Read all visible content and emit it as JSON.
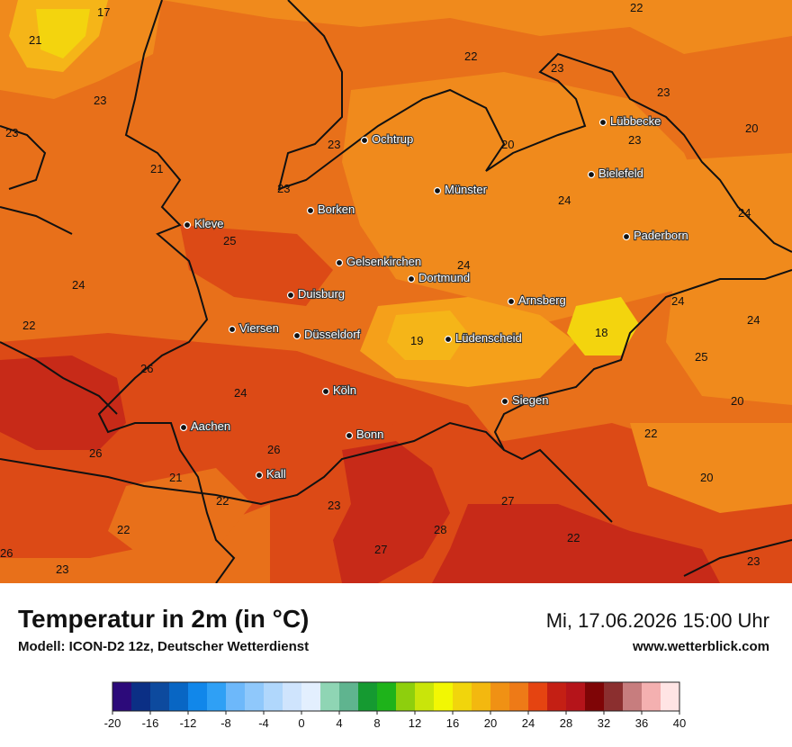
{
  "title": "Temperatur in 2m (in °C)",
  "model": "Modell: ICON-D2 12z, Deutscher Wetterdienst",
  "datetime": "Mi, 17.06.2026 15:00 Uhr",
  "site": "www.wetterblick.com",
  "colors": {
    "base_warm": "#e8701a",
    "light": "#f08a1c",
    "hot": "#dc4a16",
    "very_hot": "#c72a18",
    "cool": "#f5b518",
    "coolest": "#f3d40e",
    "border": "#111111"
  },
  "cities": [
    {
      "name": "Ochtrup"
    },
    {
      "name": "Lübbecke"
    },
    {
      "name": "Bielefeld"
    },
    {
      "name": "Münster"
    },
    {
      "name": "Borken"
    },
    {
      "name": "Kleve"
    },
    {
      "name": "Paderborn"
    },
    {
      "name": "Gelsenkirchen"
    },
    {
      "name": "Dortmund"
    },
    {
      "name": "Duisburg"
    },
    {
      "name": "Arnsberg"
    },
    {
      "name": "Viersen"
    },
    {
      "name": "Düsseldorf"
    },
    {
      "name": "Lüdenscheid"
    },
    {
      "name": "Köln"
    },
    {
      "name": "Siegen"
    },
    {
      "name": "Aachen"
    },
    {
      "name": "Bonn"
    },
    {
      "name": "Kall"
    }
  ],
  "values": [
    "17",
    "22",
    "21",
    "22",
    "23",
    "23",
    "23",
    "23",
    "20",
    "23",
    "20",
    "21",
    "23",
    "23",
    "24",
    "25",
    "24",
    "24",
    "24",
    "24",
    "22",
    "24",
    "25",
    "19",
    "18",
    "26",
    "24",
    "20",
    "26",
    "22",
    "26",
    "21",
    "22",
    "20",
    "27",
    "22",
    "23",
    "28",
    "27",
    "22",
    "26",
    "23",
    "23"
  ],
  "legend": {
    "ticks": [
      "-20",
      "-16",
      "-12",
      "-8",
      "-4",
      "0",
      "4",
      "8",
      "12",
      "16",
      "20",
      "24",
      "28",
      "32",
      "36",
      "40"
    ],
    "colors": [
      "#2c0a7a",
      "#0b2f85",
      "#0d4a9e",
      "#0866c4",
      "#1187ea",
      "#2fa0f5",
      "#6db8fa",
      "#8fc8fb",
      "#b0d7fc",
      "#cfe4fd",
      "#e3effe",
      "#8fd5b4",
      "#5fb48f",
      "#159a31",
      "#1eb31a",
      "#8ecf0d",
      "#c9e50a",
      "#f2f703",
      "#f1d50c",
      "#f3b80f",
      "#f09114",
      "#ee7a17",
      "#e54411",
      "#c41f14",
      "#b5141a",
      "#7f0506",
      "#8b2f2f",
      "#c77d7e",
      "#f4b0b0",
      "#ffe4e4"
    ]
  }
}
